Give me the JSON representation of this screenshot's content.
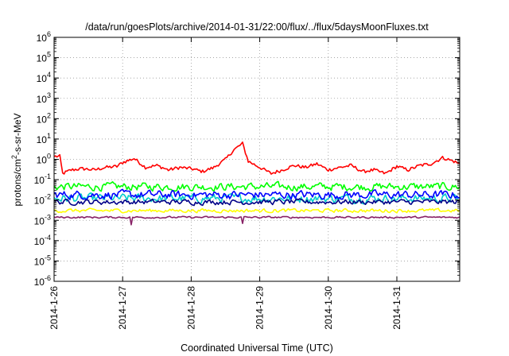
{
  "chart_data": {
    "type": "line",
    "title": "/data/run/goesPlots/archive/2014-01-31/22:00/flux/../flux/5daysMoonFluxes.txt",
    "xlabel": "Coordinated Universal Time (UTC)",
    "ylabel": {
      "prefix": "protons/cm",
      "sup": "2",
      "suffix": "-s-sr-MeV"
    },
    "x_scale": "time",
    "y_scale": "log",
    "xlim": [
      "2014-01-26",
      "2014-01-31T22:00"
    ],
    "ylim": [
      1e-06,
      1000000.0
    ],
    "grid": true,
    "legend": "none",
    "x_ticks": [
      "2014-1-26",
      "2014-1-27",
      "2014-1-28",
      "2014-1-29",
      "2014-1-30",
      "2014-1-31"
    ],
    "y_ticks": [
      {
        "base": "10",
        "exp": "-6"
      },
      {
        "base": "10",
        "exp": "-5"
      },
      {
        "base": "10",
        "exp": "-4"
      },
      {
        "base": "10",
        "exp": "-3"
      },
      {
        "base": "10",
        "exp": "-2"
      },
      {
        "base": "10",
        "exp": "-1"
      },
      {
        "base": "10",
        "exp": "0"
      },
      {
        "base": "10",
        "exp": "1"
      },
      {
        "base": "10",
        "exp": "2"
      },
      {
        "base": "10",
        "exp": "3"
      },
      {
        "base": "10",
        "exp": "4"
      },
      {
        "base": "10",
        "exp": "5"
      },
      {
        "base": "10",
        "exp": "6"
      }
    ],
    "series": [
      {
        "color": "#ff0000",
        "noise": 0.08,
        "x": [
          "2014-01-26T00:00",
          "2014-01-26T02:00",
          "2014-01-26T03:00",
          "2014-01-26T06:00",
          "2014-01-26T10:00",
          "2014-01-26T14:00",
          "2014-01-26T18:00",
          "2014-01-26T22:00",
          "2014-01-27T00:00",
          "2014-01-27T04:00",
          "2014-01-27T08:00",
          "2014-01-27T12:00",
          "2014-01-27T16:00",
          "2014-01-27T20:00",
          "2014-01-28T00:00",
          "2014-01-28T04:00",
          "2014-01-28T08:00",
          "2014-01-28T12:00",
          "2014-01-28T15:00",
          "2014-01-28T18:00",
          "2014-01-28T20:00",
          "2014-01-29T00:00",
          "2014-01-29T04:00",
          "2014-01-29T08:00",
          "2014-01-29T12:00",
          "2014-01-29T16:00",
          "2014-01-29T20:00",
          "2014-01-30T00:00",
          "2014-01-30T04:00",
          "2014-01-30T08:00",
          "2014-01-30T12:00",
          "2014-01-30T16:00",
          "2014-01-30T20:00",
          "2014-01-31T00:00",
          "2014-01-31T04:00",
          "2014-01-31T08:00",
          "2014-01-31T12:00",
          "2014-01-31T16:00",
          "2014-01-31T20:00",
          "2014-01-31T22:00"
        ],
        "y": [
          1.4,
          1.4,
          0.2,
          0.3,
          0.35,
          0.3,
          0.4,
          0.45,
          0.7,
          1.1,
          0.4,
          0.5,
          0.3,
          0.4,
          0.35,
          0.25,
          0.4,
          1.0,
          3.0,
          6.0,
          0.8,
          0.4,
          0.2,
          0.3,
          0.5,
          0.4,
          0.6,
          0.3,
          0.4,
          0.5,
          0.25,
          0.3,
          0.2,
          0.45,
          0.3,
          0.5,
          0.6,
          1.2,
          0.8,
          0.6
        ]
      },
      {
        "color": "#00ff00",
        "x_start": "2014-01-26T00:00",
        "x_end": "2014-01-31T22:00",
        "base": 0.045,
        "noise": 0.3
      },
      {
        "color": "#00cccc",
        "x_start": "2014-01-26T00:00",
        "x_end": "2014-01-31T22:00",
        "base": 0.012,
        "noise": 0.33
      },
      {
        "color": "#0000ff",
        "x_start": "2014-01-26T00:00",
        "x_end": "2014-01-31T22:00",
        "base": 0.018,
        "noise": 0.32
      },
      {
        "color": "#000088",
        "x_start": "2014-01-26T00:00",
        "x_end": "2014-01-31T22:00",
        "base": 0.008,
        "noise": 0.2
      },
      {
        "color": "#ffff00",
        "x_start": "2014-01-26T00:00",
        "x_end": "2014-01-31T22:00",
        "base": 0.003,
        "noise": 0.14
      },
      {
        "color": "#882266",
        "x_start": "2014-01-26T00:00",
        "x_end": "2014-01-31T22:00",
        "base": 0.0014,
        "noise": 0.07,
        "dips": [
          {
            "x": "2014-01-27T03:00",
            "y": 0.0006
          },
          {
            "x": "2014-01-28T18:00",
            "y": 0.0007
          }
        ]
      }
    ]
  }
}
